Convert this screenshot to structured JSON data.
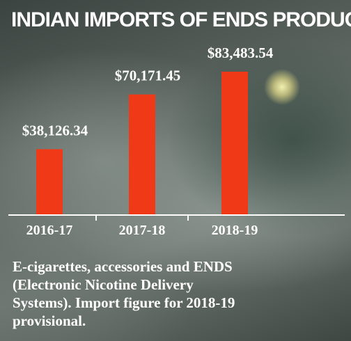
{
  "chart_data": {
    "type": "bar",
    "title": "INDIAN IMPORTS OF ENDS PRODUCTS",
    "categories": [
      "2016-17",
      "2017-18",
      "2018-19"
    ],
    "values": [
      38126.34,
      70171.45,
      83483.54
    ],
    "value_labels": [
      "$38,126.34",
      "$70,171.45",
      "$83,483.54"
    ],
    "color": "#f03a17",
    "note": [
      "E-cigarettes, accessories and ENDS",
      "(Electronic Nicotine Delivery",
      "Systems). Import figure for 2018-19",
      "provisional."
    ]
  }
}
